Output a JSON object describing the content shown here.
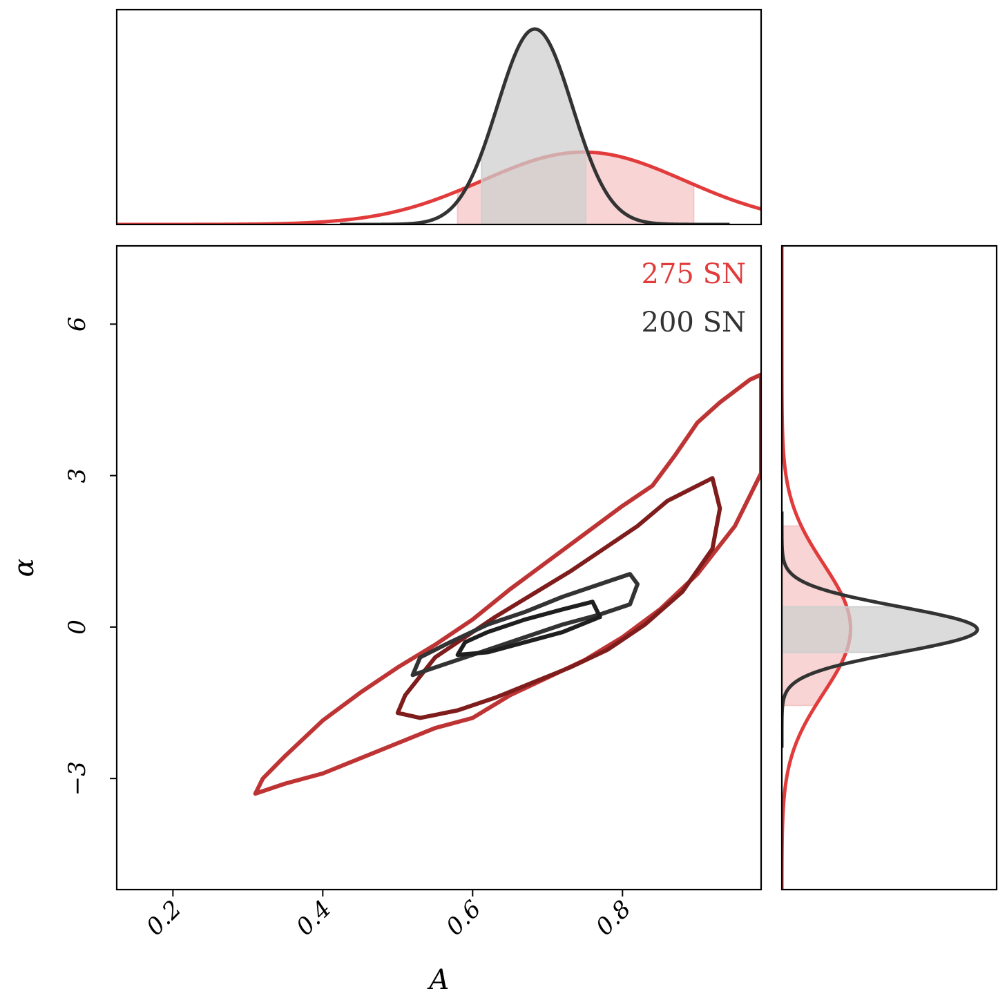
{
  "chart_data": {
    "type": "contour",
    "title": "",
    "xlabel": "A",
    "ylabel": "α",
    "xlim": [
      0.125,
      0.985
    ],
    "ylim": [
      -5.2,
      7.55
    ],
    "xticks": [
      {
        "value": 0.2,
        "label": "0.2"
      },
      {
        "value": 0.4,
        "label": "0.4"
      },
      {
        "value": 0.6,
        "label": "0.6"
      },
      {
        "value": 0.8,
        "label": "0.8"
      }
    ],
    "yticks": [
      {
        "value": 6,
        "label": "6"
      },
      {
        "value": 3,
        "label": "3"
      },
      {
        "value": 0,
        "label": "0"
      },
      {
        "value": -3,
        "label": "−3"
      }
    ],
    "legend": {
      "position": "top-right"
    },
    "series": [
      {
        "name": "275 SN",
        "color": "#e23b3b",
        "inner_color": "#7f1d1d",
        "outer_color": "#be3434",
        "fill_color": "#f5c6c6",
        "contours": {
          "outer": [
            [
              0.31,
              -3.3
            ],
            [
              0.35,
              -3.1
            ],
            [
              0.4,
              -2.9
            ],
            [
              0.45,
              -2.6
            ],
            [
              0.5,
              -2.3
            ],
            [
              0.55,
              -2.0
            ],
            [
              0.6,
              -1.8
            ],
            [
              0.65,
              -1.35
            ],
            [
              0.7,
              -1.0
            ],
            [
              0.75,
              -0.65
            ],
            [
              0.8,
              -0.2
            ],
            [
              0.85,
              0.35
            ],
            [
              0.9,
              1.05
            ],
            [
              0.95,
              2.0
            ],
            [
              0.985,
              3.05
            ],
            [
              0.985,
              5.0
            ],
            [
              0.97,
              4.9
            ],
            [
              0.93,
              4.45
            ],
            [
              0.9,
              4.05
            ],
            [
              0.87,
              3.4
            ],
            [
              0.84,
              2.8
            ],
            [
              0.8,
              2.4
            ],
            [
              0.75,
              1.85
            ],
            [
              0.7,
              1.3
            ],
            [
              0.65,
              0.75
            ],
            [
              0.6,
              0.15
            ],
            [
              0.55,
              -0.35
            ],
            [
              0.5,
              -0.8
            ],
            [
              0.45,
              -1.3
            ],
            [
              0.4,
              -1.85
            ],
            [
              0.35,
              -2.55
            ],
            [
              0.32,
              -3.0
            ],
            [
              0.31,
              -3.3
            ]
          ],
          "inner": [
            [
              0.5,
              -1.7
            ],
            [
              0.53,
              -1.8
            ],
            [
              0.58,
              -1.65
            ],
            [
              0.63,
              -1.4
            ],
            [
              0.68,
              -1.1
            ],
            [
              0.73,
              -0.8
            ],
            [
              0.78,
              -0.45
            ],
            [
              0.83,
              0.05
            ],
            [
              0.88,
              0.7
            ],
            [
              0.92,
              1.55
            ],
            [
              0.93,
              2.35
            ],
            [
              0.92,
              2.95
            ],
            [
              0.9,
              2.8
            ],
            [
              0.86,
              2.5
            ],
            [
              0.82,
              2.0
            ],
            [
              0.78,
              1.6
            ],
            [
              0.73,
              1.1
            ],
            [
              0.68,
              0.65
            ],
            [
              0.63,
              0.2
            ],
            [
              0.58,
              -0.3
            ],
            [
              0.55,
              -0.6
            ],
            [
              0.51,
              -1.35
            ],
            [
              0.5,
              -1.7
            ]
          ]
        },
        "marginal_x": {
          "mean": 0.748,
          "sigma": 0.135,
          "band": [
            0.58,
            0.895
          ]
        },
        "marginal_y": {
          "mean": -0.03,
          "sigma": 1.28,
          "band": [
            -1.55,
            2.0
          ]
        }
      },
      {
        "name": "200 SN",
        "color": "#333333",
        "inner_color": "#1f1f1f",
        "outer_color": "#333333",
        "fill_color": "#cfcfcf",
        "contours": {
          "outer": [
            [
              0.52,
              -0.95
            ],
            [
              0.57,
              -0.7
            ],
            [
              0.62,
              -0.45
            ],
            [
              0.67,
              -0.2
            ],
            [
              0.72,
              0.05
            ],
            [
              0.77,
              0.25
            ],
            [
              0.81,
              0.45
            ],
            [
              0.82,
              0.85
            ],
            [
              0.81,
              1.05
            ],
            [
              0.77,
              0.85
            ],
            [
              0.72,
              0.6
            ],
            [
              0.67,
              0.3
            ],
            [
              0.62,
              0.05
            ],
            [
              0.57,
              -0.3
            ],
            [
              0.53,
              -0.6
            ],
            [
              0.52,
              -0.95
            ]
          ],
          "inner": [
            [
              0.58,
              -0.55
            ],
            [
              0.62,
              -0.5
            ],
            [
              0.67,
              -0.3
            ],
            [
              0.72,
              -0.1
            ],
            [
              0.77,
              0.2
            ],
            [
              0.76,
              0.5
            ],
            [
              0.72,
              0.35
            ],
            [
              0.67,
              0.15
            ],
            [
              0.62,
              -0.1
            ],
            [
              0.59,
              -0.3
            ],
            [
              0.58,
              -0.55
            ]
          ]
        },
        "marginal_x": {
          "mean": 0.683,
          "sigma": 0.05,
          "band": [
            0.612,
            0.751
          ]
        },
        "marginal_y": {
          "mean": -0.05,
          "sigma": 0.45,
          "band": [
            -0.5,
            0.4
          ]
        }
      }
    ]
  }
}
